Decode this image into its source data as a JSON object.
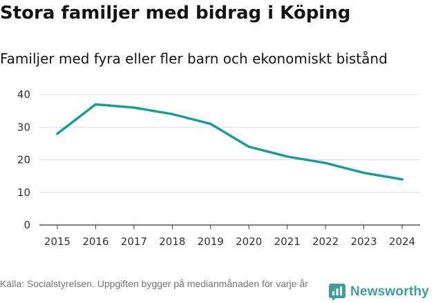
{
  "header": {
    "title": "Stora familjer med bidrag i Köping",
    "subtitle": "Familjer med fyra eller fler barn och ekonomiskt bistånd"
  },
  "footer": {
    "source": "Källa: Socialstyrelsen. Uppgiften bygger på medianmånaden för varje år",
    "brand": "Newsworthy"
  },
  "colors": {
    "line": "#1a9e93",
    "grid": "#dcdcdc",
    "axis": "#333333",
    "brand": "#3d9f98"
  },
  "chart_data": {
    "type": "line",
    "title": "Stora familjer med bidrag i Köping",
    "subtitle": "Familjer med fyra eller fler barn och ekonomiskt bistånd",
    "xlabel": "",
    "ylabel": "",
    "x": [
      "2015",
      "2016",
      "2017",
      "2018",
      "2019",
      "2020",
      "2021",
      "2022",
      "2023",
      "2024"
    ],
    "series": [
      {
        "name": "Familjer med fyra eller fler barn och ekonomiskt bistånd",
        "values": [
          28,
          37,
          36,
          34,
          31,
          24,
          21,
          19,
          16,
          14
        ]
      }
    ],
    "ylim": [
      0,
      40
    ],
    "yticks": [
      0,
      10,
      20,
      30,
      40
    ],
    "grid": true,
    "legend": "none"
  }
}
